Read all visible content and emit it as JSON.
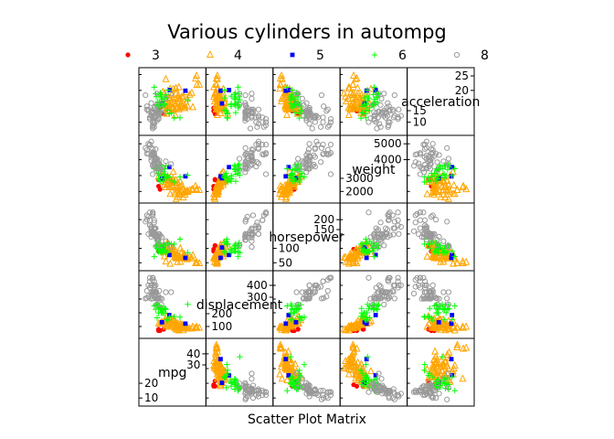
{
  "chart_data": {
    "type": "scatter",
    "title": "Various cylinders in autompg",
    "xlabel": "Scatter Plot Matrix",
    "variables": [
      "mpg",
      "displacement",
      "horsepower",
      "weight",
      "acceleration"
    ],
    "variable_labels": [
      "mpg",
      "displacement",
      "horsepower",
      "weight",
      "acceleration"
    ],
    "ranges": {
      "mpg": [
        7,
        48
      ],
      "displacement": [
        40,
        480
      ],
      "horsepower": [
        35,
        245
      ],
      "weight": [
        1500,
        5300
      ],
      "acceleration": [
        7,
        26
      ]
    },
    "diag_ticks": {
      "mpg": {
        "upper": [
          30,
          40
        ],
        "lower": [
          10,
          20
        ]
      },
      "displacement": {
        "upper": [
          300,
          400
        ],
        "lower": [
          100,
          200
        ]
      },
      "horsepower": {
        "upper": [
          150,
          200
        ],
        "lower": [
          50,
          100
        ]
      },
      "weight": {
        "upper": [
          4000,
          5000
        ],
        "lower": [
          2000,
          3000
        ]
      },
      "acceleration": {
        "upper": [
          20,
          25
        ],
        "lower": [
          10,
          15
        ]
      }
    },
    "offdiag_ticks": {
      "mpg": [
        10,
        20,
        30,
        40
      ],
      "displacement": [
        100,
        200,
        300,
        400
      ],
      "horsepower": [
        50,
        100,
        150,
        200
      ],
      "weight": [
        2000,
        3000,
        4000,
        5000
      ],
      "acceleration": [
        10,
        15,
        20,
        25
      ]
    },
    "legend_placement": "top",
    "grid": false,
    "series": [
      {
        "name": "3",
        "color": "#ff0000",
        "marker": "dot",
        "points": [
          [
            18,
            70,
            90,
            2330,
            13.5
          ],
          [
            19,
            70,
            97,
            2130,
            14.5
          ],
          [
            18,
            80,
            110,
            2720,
            13.5
          ],
          [
            21.5,
            80,
            110,
            2760,
            12.6
          ]
        ]
      },
      {
        "name": "4",
        "color": "#ffa500",
        "marker": "triangle",
        "points": [
          [
            46,
            90,
            48,
            2085,
            21.8
          ],
          [
            44,
            97,
            52,
            2130,
            24.6
          ],
          [
            44.3,
            90,
            48,
            2085,
            21.7
          ],
          [
            43.4,
            90,
            48,
            2335,
            23.7
          ],
          [
            41.5,
            98,
            76,
            2144,
            14.7
          ],
          [
            40.8,
            85,
            65,
            2110,
            19.2
          ],
          [
            39.4,
            85,
            70,
            2070,
            18.6
          ],
          [
            38,
            91,
            67,
            1965,
            15
          ],
          [
            37.7,
            89,
            62,
            2050,
            17.3
          ],
          [
            37,
            85,
            65,
            1975,
            19.4
          ],
          [
            36.1,
            98,
            66,
            1800,
            14.4
          ],
          [
            35.7,
            98,
            80,
            1915,
            14.4
          ],
          [
            35,
            72,
            69,
            1613,
            18
          ],
          [
            34.5,
            105,
            70,
            2150,
            14.9
          ],
          [
            34.1,
            86,
            65,
            1975,
            15.2
          ],
          [
            33.5,
            98,
            83,
            2075,
            15.9
          ],
          [
            32.9,
            119,
            100,
            2615,
            14.8
          ],
          [
            32.4,
            107,
            72,
            2290,
            17
          ],
          [
            32,
            71,
            65,
            1836,
            21
          ],
          [
            31.9,
            89,
            71,
            1925,
            14
          ],
          [
            31.5,
            98,
            68,
            2045,
            18.5
          ],
          [
            31,
            76,
            52,
            1649,
            16.5
          ],
          [
            30.5,
            97,
            78,
            2190,
            14.1
          ],
          [
            30,
            79,
            67,
            1515,
            19
          ],
          [
            29.8,
            134,
            90,
            2711,
            15.5
          ],
          [
            29.5,
            97,
            71,
            1825,
            12.2
          ],
          [
            29,
            90,
            70,
            1937,
            14
          ],
          [
            28.4,
            151,
            90,
            2670,
            16
          ],
          [
            28,
            97,
            92,
            2288,
            17
          ],
          [
            27.5,
            134,
            95,
            2560,
            14.2
          ],
          [
            27.2,
            119,
            97,
            2300,
            14.7
          ],
          [
            27,
            112,
            88,
            2640,
            18.6
          ],
          [
            26.6,
            151,
            84,
            2635,
            16.4
          ],
          [
            26,
            98,
            79,
            2255,
            17.7
          ],
          [
            25.5,
            122,
            96,
            2300,
            15.5
          ],
          [
            25,
            140,
            92,
            2572,
            14.9
          ],
          [
            24.5,
            151,
            88,
            2740,
            16
          ],
          [
            24,
            120,
            97,
            2489,
            15
          ],
          [
            23.5,
            173,
            110,
            2725,
            12.6
          ],
          [
            23,
            97,
            54,
            2254,
            23.5
          ],
          [
            22.4,
            151,
            90,
            2950,
            17.3
          ],
          [
            22,
            140,
            72,
            2408,
            19
          ],
          [
            21.5,
            121,
            110,
            2600,
            12.8
          ],
          [
            21,
            120,
            87,
            2979,
            19.5
          ],
          [
            20.3,
            131,
            103,
            2830,
            15.9
          ],
          [
            20,
            130,
            102,
            3150,
            15.7
          ],
          [
            19,
            121,
            112,
            2868,
            15.5
          ],
          [
            18,
            121,
            112,
            2933,
            14.5
          ],
          [
            26,
            97,
            46,
            1835,
            20.5
          ],
          [
            25,
            110,
            87,
            2672,
            17.5
          ],
          [
            24,
            107,
            90,
            2430,
            14.5
          ],
          [
            31.3,
            120,
            75,
            2542,
            17.5
          ],
          [
            36,
            105,
            74,
            1980,
            15.3
          ],
          [
            34,
            112,
            88,
            2395,
            18
          ],
          [
            29.9,
            98,
            65,
            2380,
            20.7
          ],
          [
            27.9,
            156,
            105,
            2800,
            14.4
          ],
          [
            33,
            91,
            53,
            1795,
            17.4
          ],
          [
            30.9,
            105,
            75,
            2230,
            14.5
          ],
          [
            28.1,
            141,
            80,
            3230,
            20.4
          ],
          [
            24.2,
            146,
            120,
            2930,
            13.8
          ]
        ]
      },
      {
        "name": "5",
        "color": "#0000ff",
        "marker": "square",
        "points": [
          [
            20.3,
            131,
            103,
            2830,
            15.9
          ],
          [
            25.4,
            183,
            77,
            3530,
            20.1
          ],
          [
            36.4,
            121,
            67,
            2950,
            19.9
          ]
        ]
      },
      {
        "name": "6",
        "color": "#00ff00",
        "marker": "plus",
        "points": [
          [
            22,
            198,
            95,
            2833,
            15.5
          ],
          [
            18,
            199,
            97,
            2774,
            15.5
          ],
          [
            21,
            199,
            90,
            2648,
            15
          ],
          [
            16,
            225,
            105,
            3439,
            15.5
          ],
          [
            19,
            232,
            100,
            2634,
            13
          ],
          [
            18,
            250,
            88,
            3139,
            14.5
          ],
          [
            17,
            250,
            100,
            3329,
            15.5
          ],
          [
            20,
            225,
            100,
            3651,
            17.7
          ],
          [
            22.5,
            232,
            90,
            3085,
            17.6
          ],
          [
            19.2,
            231,
            105,
            3535,
            19.2
          ],
          [
            20.6,
            231,
            105,
            3380,
            15.8
          ],
          [
            20.2,
            200,
            85,
            2965,
            15.8
          ],
          [
            18.1,
            258,
            120,
            3410,
            15.1
          ],
          [
            19.8,
            200,
            85,
            2990,
            18.2
          ],
          [
            17.5,
            250,
            110,
            3520,
            16.4
          ],
          [
            24.3,
            151,
            90,
            3003,
            20.1
          ],
          [
            23.8,
            151,
            85,
            2855,
            17.6
          ],
          [
            28.8,
            173,
            115,
            2595,
            11.3
          ],
          [
            26.8,
            173,
            115,
            2700,
            12.9
          ],
          [
            32.7,
            168,
            132,
            2910,
            11.4
          ],
          [
            25.4,
            168,
            116,
            2900,
            12.6
          ],
          [
            24.2,
            146,
            120,
            2930,
            13.8
          ],
          [
            22.4,
            231,
            110,
            3415,
            15.8
          ],
          [
            18.5,
            250,
            110,
            3645,
            16.2
          ],
          [
            21.5,
            231,
            115,
            3245,
            15.4
          ],
          [
            15,
            250,
            72,
            3432,
            21
          ],
          [
            16.5,
            258,
            110,
            3632,
            18
          ],
          [
            20.5,
            225,
            100,
            3430,
            17.2
          ],
          [
            19.1,
            225,
            90,
            3381,
            18.7
          ],
          [
            17,
            163,
            125,
            3140,
            13.6
          ],
          [
            38,
            262,
            85,
            3015,
            17
          ],
          [
            23,
            225,
            110,
            3620,
            18.7
          ],
          [
            16,
            258,
            110,
            3730,
            19
          ]
        ]
      },
      {
        "name": "8",
        "color": "#999999",
        "marker": "circle",
        "points": [
          [
            18,
            307,
            130,
            3504,
            12
          ],
          [
            15,
            350,
            165,
            3693,
            11.5
          ],
          [
            18,
            318,
            150,
            3436,
            11
          ],
          [
            16,
            304,
            150,
            3433,
            12
          ],
          [
            17,
            302,
            140,
            3449,
            10.5
          ],
          [
            15,
            429,
            198,
            4341,
            10
          ],
          [
            14,
            454,
            220,
            4354,
            9
          ],
          [
            14,
            440,
            215,
            4312,
            8.5
          ],
          [
            14,
            455,
            225,
            4425,
            10
          ],
          [
            15,
            390,
            190,
            3850,
            8.5
          ],
          [
            15,
            383,
            170,
            3563,
            10
          ],
          [
            14,
            340,
            160,
            3609,
            8
          ],
          [
            15,
            400,
            150,
            3761,
            9.5
          ],
          [
            14,
            455,
            225,
            3086,
            10
          ],
          [
            10,
            360,
            215,
            4615,
            14
          ],
          [
            10,
            307,
            200,
            4376,
            15
          ],
          [
            11,
            318,
            210,
            4382,
            13.5
          ],
          [
            9,
            304,
            193,
            4732,
            18.5
          ],
          [
            13,
            400,
            170,
            4746,
            12
          ],
          [
            12,
            429,
            198,
            4952,
            11.5
          ],
          [
            13,
            350,
            165,
            4274,
            12
          ],
          [
            13,
            351,
            153,
            4129,
            13
          ],
          [
            12,
            383,
            180,
            4955,
            11.5
          ],
          [
            14,
            304,
            150,
            3672,
            11.5
          ],
          [
            13,
            302,
            140,
            4294,
            16
          ],
          [
            15,
            318,
            150,
            4237,
            14.5
          ],
          [
            16,
            400,
            170,
            4668,
            11.5
          ],
          [
            17,
            305,
            130,
            3840,
            15.4
          ],
          [
            17.5,
            305,
            145,
            3880,
            12.5
          ],
          [
            15.5,
            350,
            170,
            4165,
            11.4
          ],
          [
            16,
            318,
            140,
            4080,
            13.7
          ],
          [
            18.5,
            360,
            150,
            3940,
            13
          ],
          [
            19.2,
            305,
            145,
            3425,
            13.2
          ],
          [
            18,
            318,
            140,
            3735,
            13.2
          ],
          [
            16.5,
            351,
            138,
            3955,
            13.2
          ],
          [
            23,
            350,
            125,
            3900,
            17.4
          ],
          [
            26.6,
            350,
            105,
            3725,
            19
          ],
          [
            17.6,
            302,
            129,
            3725,
            13.4
          ],
          [
            20.2,
            302,
            139,
            3570,
            12.8
          ],
          [
            17,
            260,
            110,
            4060,
            19
          ],
          [
            19.9,
            260,
            110,
            3365,
            15.5
          ],
          [
            18.1,
            302,
            139,
            3205,
            11.2
          ],
          [
            14.5,
            351,
            152,
            4215,
            12.8
          ],
          [
            13,
            318,
            150,
            3940,
            13.2
          ],
          [
            14,
            351,
            148,
            4657,
            13.5
          ],
          [
            16,
            350,
            145,
            4055,
            12
          ],
          [
            12,
            455,
            225,
            4951,
            11
          ],
          [
            11,
            400,
            150,
            4997,
            14
          ],
          [
            13,
            400,
            175,
            5140,
            12
          ],
          [
            15,
            350,
            145,
            4440,
            14
          ]
        ]
      }
    ]
  }
}
